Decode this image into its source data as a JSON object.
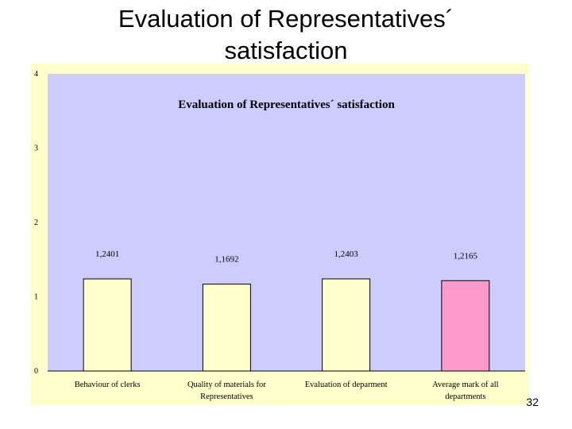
{
  "slide": {
    "title_line1": "Evaluation of Representatives´",
    "title_line2": "satisfaction",
    "page_number": "32"
  },
  "colors": {
    "plot_area": "#ccccff",
    "frame_background": "#ffffcc",
    "bar_default": "#ffffcc",
    "bar_highlight": "#ff99cc",
    "bar_outline": "#000000",
    "axis": "#000000"
  },
  "chart_data": {
    "type": "bar",
    "title": "Evaluation of Representatives´ satisfaction",
    "xlabel": "",
    "ylabel": "",
    "ylim": [
      0,
      4
    ],
    "yticks": [
      "0",
      "1",
      "2",
      "3",
      "4"
    ],
    "grid": false,
    "legend": "none",
    "categories": [
      [
        "Behaviour of clerks"
      ],
      [
        "Quality of materials for",
        "Representatives"
      ],
      [
        "Evaluation of deparment"
      ],
      [
        "Average mark of all",
        "departments"
      ]
    ],
    "values": [
      1.2401,
      1.1692,
      1.2403,
      1.2165
    ],
    "value_labels": [
      "1,2401",
      "1,1692",
      "1,2403",
      "1,2165"
    ],
    "highlight_index": 3
  }
}
